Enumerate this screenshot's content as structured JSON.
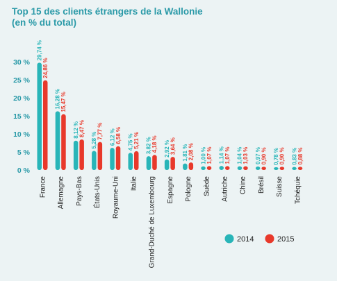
{
  "chart_data": {
    "type": "bar",
    "title": "Top 15 des clients étrangers de la Wallonie",
    "subtitle": "(en % du total)",
    "categories": [
      "France",
      "Allemagne",
      "Pays-Bas",
      "États-Unis",
      "Royaume-Uni",
      "Italie",
      "Grand-Duché de Luxembourg",
      "Espagne",
      "Pologne",
      "Suède",
      "Autriche",
      "Chine",
      "Brésil",
      "Suisse",
      "Tchéquie"
    ],
    "series": [
      {
        "name": "2014",
        "color": "#29b5b8",
        "values": [
          29.74,
          16.28,
          8.12,
          5.28,
          6.12,
          4.75,
          3.82,
          2.92,
          1.81,
          1.0,
          1.14,
          1.04,
          0.97,
          0.78,
          0.83
        ],
        "labels": [
          "29,74 %",
          "16,28 %",
          "8,12 %",
          "5,28 %",
          "6,12 %",
          "4,75 %",
          "3,82 %",
          "2,92 %",
          "1,81 %",
          "1,00 %",
          "1,14 %",
          "1,04 %",
          "0,97 %",
          "0,78 %",
          "0,83 %"
        ]
      },
      {
        "name": "2015",
        "color": "#e8392b",
        "values": [
          24.86,
          15.47,
          8.47,
          7.77,
          6.58,
          5.21,
          4.18,
          3.64,
          2.08,
          1.07,
          1.07,
          1.03,
          0.9,
          0.9,
          0.88
        ],
        "labels": [
          "24,86 %",
          "15,47 %",
          "8,47 %",
          "7,77 %",
          "6,58 %",
          "5,21 %",
          "4,18 %",
          "3,64 %",
          "2,08 %",
          "1,07 %",
          "1,07 %",
          "1,03 %",
          "0,90 %",
          "0,90 %",
          "0,88 %"
        ]
      }
    ],
    "ylim": [
      0,
      30
    ],
    "yticks": [
      "0 %",
      "5 %",
      "10 %",
      "15 %",
      "20 %",
      "25 %",
      "30 %"
    ],
    "grid": false,
    "legend": "bottom-right"
  }
}
